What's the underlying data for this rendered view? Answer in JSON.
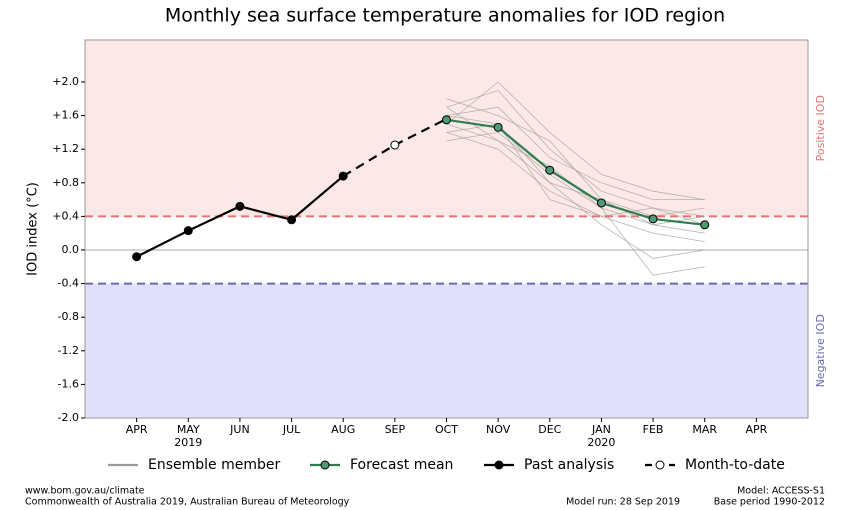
{
  "chart_data": {
    "type": "line",
    "title": "Monthly sea surface temperature anomalies for IOD region",
    "y_label": "IOD index (°C)",
    "categories": [
      "APR",
      "MAY",
      "JUN",
      "JUL",
      "AUG",
      "SEP",
      "OCT",
      "NOV",
      "DEC",
      "JAN",
      "FEB",
      "MAR",
      "APR"
    ],
    "year_row": [
      null,
      "2019",
      null,
      null,
      null,
      null,
      null,
      null,
      null,
      "2020",
      null,
      null,
      null
    ],
    "ylim": [
      -2.0,
      2.5
    ],
    "yticks": [
      {
        "value": 2.0,
        "label": "+2.0"
      },
      {
        "value": 1.6,
        "label": "+1.6"
      },
      {
        "value": 1.2,
        "label": "+1.2"
      },
      {
        "value": 0.8,
        "label": "+0.8"
      },
      {
        "value": 0.4,
        "label": "+0.4"
      },
      {
        "value": 0.0,
        "label": "0.0"
      },
      {
        "value": -0.4,
        "label": "-0.4"
      },
      {
        "value": -0.8,
        "label": "-0.8"
      },
      {
        "value": -1.2,
        "label": "-1.2"
      },
      {
        "value": -1.6,
        "label": "-1.6"
      },
      {
        "value": -2.0,
        "label": "-2.0"
      }
    ],
    "zero_line": true,
    "thresholds": [
      {
        "value": 0.4,
        "color": "#e87272",
        "fill": "#fde8e8",
        "side": "above",
        "label": "Positive IOD"
      },
      {
        "value": -0.4,
        "color": "#6a6ab0",
        "fill": "#e1e1fc",
        "side": "below",
        "label": "Negative IOD"
      }
    ],
    "ensemble": {
      "name": "Ensemble member",
      "color": "#9a9a9a",
      "members": [
        [
          null,
          null,
          null,
          null,
          null,
          null,
          1.7,
          1.9,
          1.2,
          0.7,
          0.5,
          0.4
        ],
        [
          null,
          null,
          null,
          null,
          null,
          null,
          1.4,
          1.2,
          0.7,
          0.4,
          0.2,
          0.1
        ],
        [
          null,
          null,
          null,
          null,
          null,
          null,
          1.6,
          1.7,
          1.1,
          0.8,
          0.6,
          0.6
        ],
        [
          null,
          null,
          null,
          null,
          null,
          null,
          1.5,
          1.3,
          0.8,
          0.3,
          -0.1,
          0.0
        ],
        [
          null,
          null,
          null,
          null,
          null,
          null,
          1.8,
          1.6,
          1.3,
          0.6,
          0.4,
          0.5
        ],
        [
          null,
          null,
          null,
          null,
          null,
          null,
          1.3,
          1.4,
          0.9,
          0.5,
          0.3,
          0.2
        ],
        [
          null,
          null,
          null,
          null,
          null,
          null,
          1.6,
          1.5,
          0.6,
          0.4,
          0.5,
          0.3
        ],
        [
          null,
          null,
          null,
          null,
          null,
          null,
          1.5,
          2.0,
          1.4,
          0.9,
          0.7,
          0.6
        ],
        [
          null,
          null,
          null,
          null,
          null,
          null,
          1.7,
          1.3,
          1.0,
          0.5,
          -0.3,
          -0.2
        ],
        [
          null,
          null,
          null,
          null,
          null,
          null,
          1.4,
          1.5,
          0.8,
          0.6,
          0.3,
          0.4
        ]
      ]
    },
    "series": [
      {
        "name": "Forecast mean",
        "color": "#2e7d4f",
        "marker_fill": "#4f9a72",
        "dashed": false,
        "values": [
          null,
          null,
          null,
          null,
          null,
          null,
          1.55,
          1.46,
          0.95,
          0.56,
          0.37,
          0.3,
          null
        ]
      },
      {
        "name": "Past analysis",
        "color": "#000000",
        "marker_fill": "#000000",
        "dashed": false,
        "values": [
          -0.08,
          0.23,
          0.52,
          0.36,
          0.88,
          null,
          null,
          null,
          null,
          null,
          null,
          null,
          null
        ]
      },
      {
        "name": "Month-to-date",
        "color": "#000000",
        "marker_fill": "#ffffff",
        "dashed": true,
        "values": [
          null,
          null,
          null,
          null,
          0.88,
          1.25,
          1.56,
          null,
          null,
          null,
          null,
          null,
          null
        ]
      }
    ]
  },
  "footer": {
    "source_url": "www.bom.gov.au/climate",
    "copyright": "Commonwealth of Australia 2019, Australian Bureau of Meteorology",
    "model_run": "Model run: 28 Sep 2019",
    "model": "Model: ACCESS-S1",
    "base_period": "Base period 1990-2012"
  }
}
